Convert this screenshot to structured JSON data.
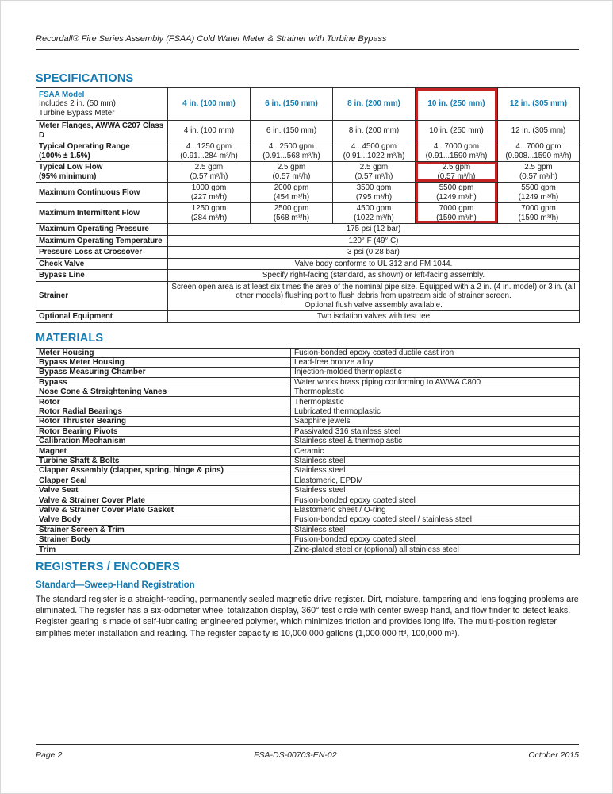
{
  "colors": {
    "accent_blue": "#147cb4",
    "highlight_red": "#c42323",
    "border_dark": "#2e2e2e"
  },
  "header": {
    "title": "Recordall® Fire Series Assembly (FSAA) Cold Water Meter & Strainer with Turbine Bypass"
  },
  "specifications": {
    "heading": "SPECIFICATIONS",
    "table": {
      "corner_lines": [
        "FSAA Model",
        "Includes 2 in. (50 mm)",
        "Turbine Bypass Meter"
      ],
      "columns": [
        "4 in. (100 mm)",
        "6 in. (150 mm)",
        "8 in. (200 mm)",
        "10 in. (250 mm)",
        "12 in. (305 mm)"
      ],
      "data_rows": [
        {
          "label_lines": [
            "Meter Flanges, AWWA C207 Class D"
          ],
          "cells": [
            [
              "4 in. (100 mm)"
            ],
            [
              "6 in. (150 mm)"
            ],
            [
              "8 in. (200 mm)"
            ],
            [
              "10 in. (250 mm)"
            ],
            [
              "12 in. (305 mm)"
            ]
          ]
        },
        {
          "label_lines": [
            "Typical Operating Range",
            "(100% ± 1.5%)"
          ],
          "cells": [
            [
              "4...1250 gpm",
              "(0.91...284 m³/h)"
            ],
            [
              "4...2500 gpm",
              "(0.91...568 m³/h)"
            ],
            [
              "4...4500 gpm",
              "(0.91...1022 m³/h)"
            ],
            [
              "4...7000 gpm",
              "(0.91...1590 m³/h)"
            ],
            [
              "4...7000 gpm",
              "(0.908...1590 m³/h)"
            ]
          ]
        },
        {
          "label_lines": [
            "Typical Low Flow",
            "(95% minimum)"
          ],
          "cells": [
            [
              "2.5 gpm",
              "(0.57 m³/h)"
            ],
            [
              "2.5 gpm",
              "(0.57 m³/h)"
            ],
            [
              "2.5 gpm",
              "(0.57 m³/h)"
            ],
            [
              "2.5 gpm",
              "(0.57 m³/h)"
            ],
            [
              "2.5 gpm",
              "(0.57 m³/h)"
            ]
          ]
        },
        {
          "label_lines": [
            "Maximum Continuous Flow"
          ],
          "cells": [
            [
              "1000 gpm",
              "(227 m³/h)"
            ],
            [
              "2000 gpm",
              "(454 m³/h)"
            ],
            [
              "3500 gpm",
              "(795 m³/h)"
            ],
            [
              "5500 gpm",
              "(1249 m³/h)"
            ],
            [
              "5500 gpm",
              "(1249 m³/h)"
            ]
          ]
        },
        {
          "label_lines": [
            "Maximum Intermittent Flow"
          ],
          "cells": [
            [
              "1250 gpm",
              "(284 m³/h)"
            ],
            [
              "2500 gpm",
              "(568 m³/h)"
            ],
            [
              "4500 gpm",
              "(1022 m³/h)"
            ],
            [
              "7000 gpm",
              "(1590 m³/h)"
            ],
            [
              "7000 gpm",
              "(1590 m³/h)"
            ]
          ]
        }
      ],
      "span_rows": [
        {
          "label_lines": [
            "Maximum Operating Pressure"
          ],
          "value_lines": [
            "175 psi (12 bar)"
          ]
        },
        {
          "label_lines": [
            "Maximum Operating Temperature"
          ],
          "value_lines": [
            "120° F (49° C)"
          ]
        },
        {
          "label_lines": [
            "Pressure Loss at Crossover"
          ],
          "value_lines": [
            "3 psi (0.28 bar)"
          ]
        },
        {
          "label_lines": [
            "Check Valve"
          ],
          "value_lines": [
            "Valve body conforms to UL 312 and FM 1044."
          ]
        },
        {
          "label_lines": [
            "Bypass Line"
          ],
          "value_lines": [
            "Specify right-facing (standard, as shown) or left-facing assembly."
          ]
        },
        {
          "label_lines": [
            "Strainer"
          ],
          "value_lines": [
            "Screen open area is at least six times the area of the nominal pipe size. Equipped with a 2 in. (4 in. model) or 3 in.  (all other models) flushing port to flush debris from upstream side of strainer screen.",
            "Optional flush valve assembly available."
          ]
        },
        {
          "label_lines": [
            "Optional Equipment"
          ],
          "value_lines": [
            "Two isolation valves with test tee"
          ]
        }
      ],
      "highlight": {
        "highlighted_column": "10 in. (250 mm)",
        "column_index": 3,
        "last_row_index": 4,
        "emphasized_row_index": 2,
        "emphasized_cell_value": "2.5 gpm (0.57 m³/h)"
      }
    }
  },
  "materials": {
    "heading": "MATERIALS",
    "rows": [
      [
        "Meter Housing",
        "Fusion-bonded epoxy coated ductile cast iron"
      ],
      [
        "Bypass Meter Housing",
        "Lead-free bronze alloy"
      ],
      [
        "Bypass Measuring Chamber",
        "Injection-molded thermoplastic"
      ],
      [
        "Bypass",
        "Water works brass piping conforming to AWWA C800"
      ],
      [
        "Nose Cone & Straightening Vanes",
        "Thermoplastic"
      ],
      [
        "Rotor",
        "Thermoplastic"
      ],
      [
        "Rotor Radial Bearings",
        "Lubricated thermoplastic"
      ],
      [
        "Rotor Thruster Bearing",
        "Sapphire jewels"
      ],
      [
        "Rotor Bearing Pivots",
        "Passivated 316 stainless steel"
      ],
      [
        "Calibration Mechanism",
        "Stainless steel & thermoplastic"
      ],
      [
        "Magnet",
        "Ceramic"
      ],
      [
        "Turbine Shaft & Bolts",
        "Stainless steel"
      ],
      [
        "Clapper Assembly (clapper, spring, hinge & pins)",
        "Stainless steel"
      ],
      [
        "Clapper Seal",
        "Elastomeric, EPDM"
      ],
      [
        "Valve Seat",
        "Stainless steel"
      ],
      [
        "Valve & Strainer Cover Plate",
        "Fusion-bonded epoxy coated steel"
      ],
      [
        "Valve & Strainer Cover Plate Gasket",
        "Elastomeric sheet / O-ring"
      ],
      [
        "Valve Body",
        "Fusion-bonded epoxy coated steel / stainless steel"
      ],
      [
        "Strainer Screen & Trim",
        "Stainless steel"
      ],
      [
        "Strainer Body",
        "Fusion-bonded epoxy coated steel"
      ],
      [
        "Trim",
        "Zinc-plated steel or (optional) all stainless steel"
      ]
    ]
  },
  "registers": {
    "heading": "REGISTERS / ENCODERS",
    "subheading": "Standard—Sweep-Hand Registration",
    "paragraph": "The standard register is a straight-reading, permanently sealed magnetic drive register. Dirt, moisture, tampering and lens fogging problems are eliminated. The register has a six-odometer wheel totalization display, 360° test circle with center sweep hand, and flow finder to detect leaks. Register gearing is made of self-lubricating engineered polymer, which minimizes friction and provides long life. The multi-position register simplifies meter installation and reading. The register capacity is 10,000,000 gallons (1,000,000 ft³, 100,000 m³)."
  },
  "footer": {
    "page_label": "Page 2",
    "document_number": "FSA-DS-00703-EN-02",
    "date": "October 2015"
  }
}
